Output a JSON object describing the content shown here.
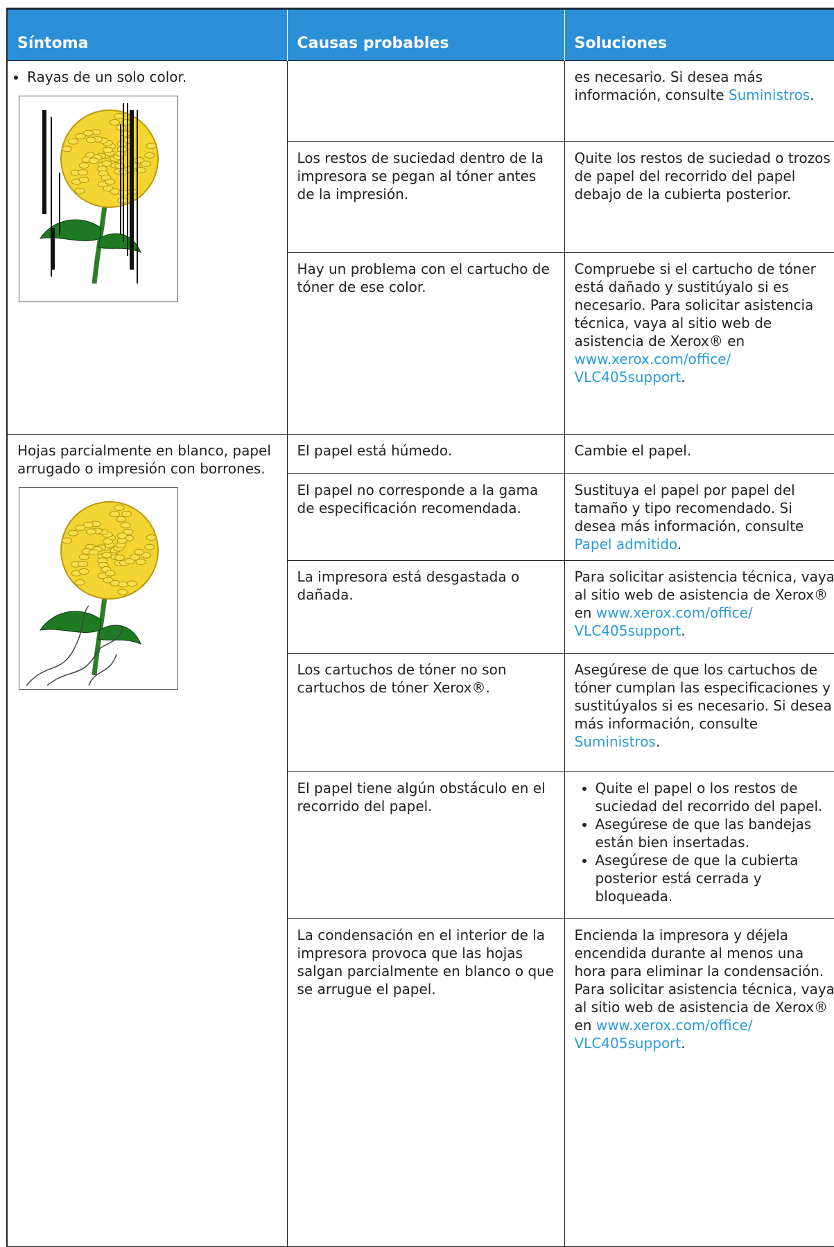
{
  "table": {
    "header": [
      "Síntoma",
      "Causas probables",
      "Soluciones"
    ],
    "rows": [
      {
        "symptom_bullets": [
          "Rayas de un solo color."
        ],
        "causes": [
          {
            "cause": "",
            "solution": [
              {
                "text": "es necesario. Si desea más información, consulte "
              },
              {
                "link": "Suministros"
              },
              {
                "text": "."
              }
            ]
          },
          {
            "cause": "Los restos de suciedad dentro de la impresora se pegan al tóner antes de la impresión.",
            "solution": [
              {
                "text": "Quite los restos de suciedad o trozos de papel del recorrido del papel debajo de la cubierta posterior."
              }
            ]
          },
          {
            "cause": "Hay un problema con el cartucho de tóner de ese color.",
            "solution": [
              {
                "text": "Compruebe si el cartucho de tóner está dañado y sustitúyalo si es necesario. Para solicitar asistencia técnica, vaya al sitio web de asistencia de Xerox® en "
              },
              {
                "link": "www.xerox.com/office/ VLC405support"
              },
              {
                "text": "."
              }
            ]
          }
        ]
      },
      {
        "symptom": "Hojas parcialmente en blanco, papel arrugado o impresión con borrones.",
        "causes": [
          {
            "cause": "El papel está húmedo.",
            "solution": [
              {
                "text": "Cambie el papel."
              }
            ]
          },
          {
            "cause": "El papel no corresponde a la gama de especificación recomendada.",
            "solution": [
              {
                "text": "Sustituya el papel por papel del tamaño y tipo recomendado. Si desea más información, consulte "
              },
              {
                "link": "Papel admitido"
              },
              {
                "text": "."
              }
            ]
          },
          {
            "cause": "La impresora está desgastada o dañada.",
            "solution": [
              {
                "text": "Para solicitar asistencia técnica, vaya al sitio web de asistencia de Xerox® en "
              },
              {
                "link": "www.xerox.com/office/ VLC405support"
              },
              {
                "text": "."
              }
            ]
          },
          {
            "cause": "Los cartuchos de tóner no son cartuchos de tóner Xerox®.",
            "solution": [
              {
                "text": "Asegúrese de que los cartuchos de tóner cumplan las especificaciones y sustitúyalos si es necesario. Si desea más información, consulte "
              },
              {
                "link": "Suministros"
              },
              {
                "text": "."
              }
            ]
          },
          {
            "cause": "El papel tiene algún obstáculo en el recorrido del papel.",
            "solution": [
              {
                "bullets": [
                  "Quite el papel o los restos de suciedad del recorrido del papel.",
                  "Asegúrese de que las bandejas están bien insertadas.",
                  "Asegúrese de que la cubierta posterior está cerrada y bloqueada."
                ]
              }
            ]
          },
          {
            "cause": "La condensación en el interior de la impresora provoca que las hojas salgan parcialmente en blanco o que se arrugue el papel.",
            "solution": [
              {
                "text": "Encienda la impresora y déjela encendida durante al menos una hora para eliminar la condensación. Para solicitar asistencia técnica, vaya al sitio web de asistencia de Xerox® en "
              },
              {
                "link": "www.xerox.com/office/ VLC405support"
              },
              {
                "text": "."
              }
            ]
          }
        ]
      }
    ]
  }
}
